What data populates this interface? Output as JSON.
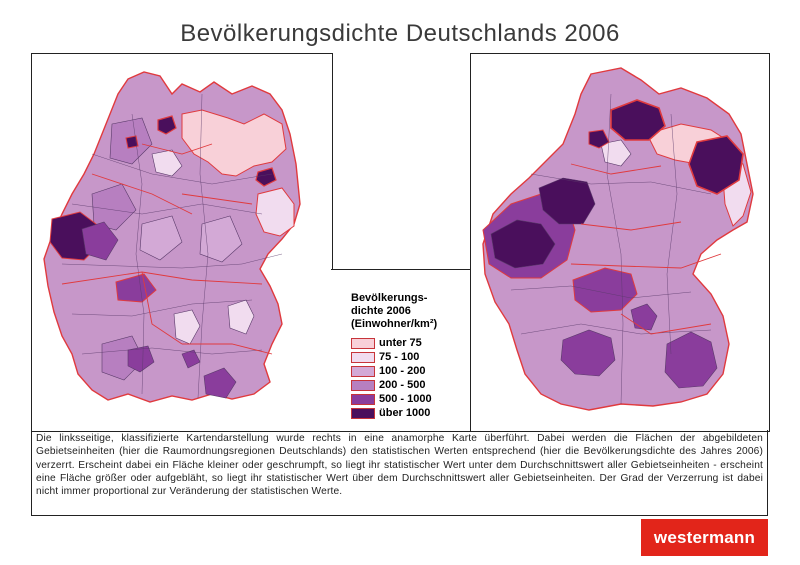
{
  "title": "Bevölkerungsdichte Deutschlands 2006",
  "legend": {
    "title": "Bevölkerungs-\ndichte 2006\n(Einwohner/km²)",
    "items": [
      {
        "label": "unter 75",
        "color": "#f8d0d8"
      },
      {
        "label": "75 - 100",
        "color": "#f1dcef"
      },
      {
        "label": "100 - 200",
        "color": "#d3a9d6"
      },
      {
        "label": "200 - 500",
        "color": "#b77fc0"
      },
      {
        "label": "500 - 1000",
        "color": "#8a3d9c"
      },
      {
        "label": "über 1000",
        "color": "#4a0f5c"
      }
    ]
  },
  "description": "Die linksseitige, klassifizierte Kartendarstellung wurde rechts in eine anamorphe Karte überführt. Dabei werden die Flächen der abgebildeten Gebietseinheiten (hier die Raumordnungsregionen Deutschlands) den statistischen Werten entsprechend (hier die Bevölkerungsdichte des Jahres 2006) verzerrt. Erscheint dabei ein Fläche kleiner oder geschrumpft, so liegt ihr statistischer Wert unter dem Durchschnittswert aller Gebietseinheiten - erscheint eine Fläche größer oder aufgebläht, so liegt ihr statistischer Wert über dem Durchschnittswert aller Gebietseinheiten. Der Grad der Verzerrung ist dabei nicht immer proportional zur Veränderung der statistischen Werte.",
  "logo": "westermann",
  "colors": {
    "border": "#e03a3e",
    "region_line": "#5a3a6a",
    "base": "#c797c9"
  }
}
